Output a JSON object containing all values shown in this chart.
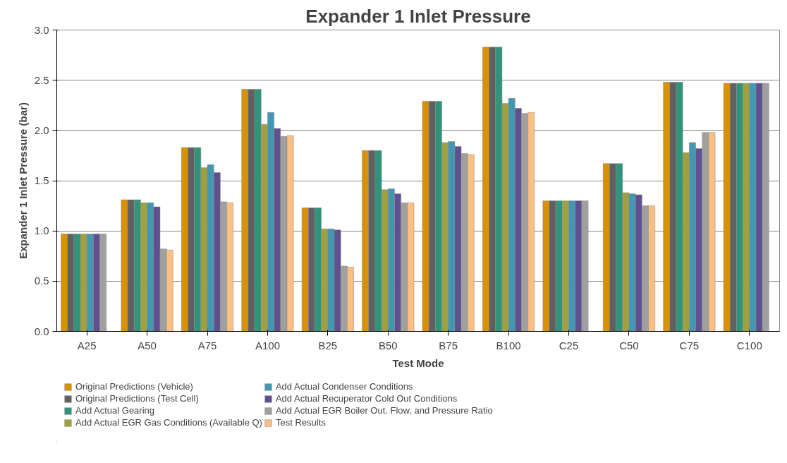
{
  "chart_data": {
    "type": "bar",
    "title": "Expander 1 Inlet Pressure",
    "xlabel": "Test Mode",
    "ylabel": "Expander 1 Inlet Pressure (bar)",
    "categories": [
      "A25",
      "A50",
      "A75",
      "A100",
      "B25",
      "B50",
      "B75",
      "B100",
      "C25",
      "C50",
      "C75",
      "C100"
    ],
    "series": [
      {
        "name": "Original Predictions (Vehicle)",
        "color": "#d99100",
        "values": [
          0.97,
          1.31,
          1.83,
          2.41,
          1.23,
          1.8,
          2.29,
          2.83,
          1.3,
          1.67,
          2.48,
          2.47
        ]
      },
      {
        "name": "Original Predictions (Test Cell)",
        "color": "#606060",
        "values": [
          0.97,
          1.31,
          1.83,
          2.41,
          1.23,
          1.8,
          2.29,
          2.83,
          1.3,
          1.67,
          2.48,
          2.47
        ]
      },
      {
        "name": "Add Actual Gearing",
        "color": "#30937a",
        "values": [
          0.97,
          1.31,
          1.83,
          2.41,
          1.23,
          1.8,
          2.29,
          2.83,
          1.3,
          1.67,
          2.48,
          2.47
        ]
      },
      {
        "name": "Add Actual EGR Gas Conditions (Available Q)",
        "color": "#a0a040",
        "values": [
          0.97,
          1.28,
          1.63,
          2.06,
          1.02,
          1.41,
          1.88,
          2.27,
          1.3,
          1.38,
          1.78,
          2.47
        ]
      },
      {
        "name": "Add Actual Condenser Conditions",
        "color": "#4397b0",
        "values": [
          0.97,
          1.28,
          1.66,
          2.18,
          1.02,
          1.42,
          1.89,
          2.32,
          1.3,
          1.37,
          1.88,
          2.47
        ]
      },
      {
        "name": "Add Actual Recuperator Cold Out Conditions",
        "color": "#60508f",
        "values": [
          0.97,
          1.24,
          1.58,
          2.02,
          1.01,
          1.37,
          1.84,
          2.22,
          1.3,
          1.36,
          1.82,
          2.47
        ]
      },
      {
        "name": "Add Actual EGR Boiler Out. Flow, and Pressure Ratio",
        "color": "#a0a0a0",
        "values": [
          0.97,
          0.82,
          1.29,
          1.94,
          0.65,
          1.28,
          1.77,
          2.17,
          1.3,
          1.25,
          1.98,
          2.47
        ]
      },
      {
        "name": "Test Results",
        "color": "#f9bf84",
        "values": [
          null,
          0.81,
          1.28,
          1.95,
          0.64,
          1.28,
          1.76,
          2.18,
          null,
          1.25,
          1.98,
          null
        ]
      }
    ],
    "ylim": [
      0,
      3.0
    ],
    "yticks": [
      {
        "value": 0,
        "label": "0.0"
      },
      {
        "value": 0.5,
        "label": "0.5"
      },
      {
        "value": 1.0,
        "label": "1.0"
      },
      {
        "value": 1.5,
        "label": "1.5"
      },
      {
        "value": 2.0,
        "label": "2.0"
      },
      {
        "value": 2.5,
        "label": "2.5"
      },
      {
        "value": 3.0,
        "label": "3.0"
      }
    ],
    "grid": "y",
    "legend": "bottom"
  }
}
